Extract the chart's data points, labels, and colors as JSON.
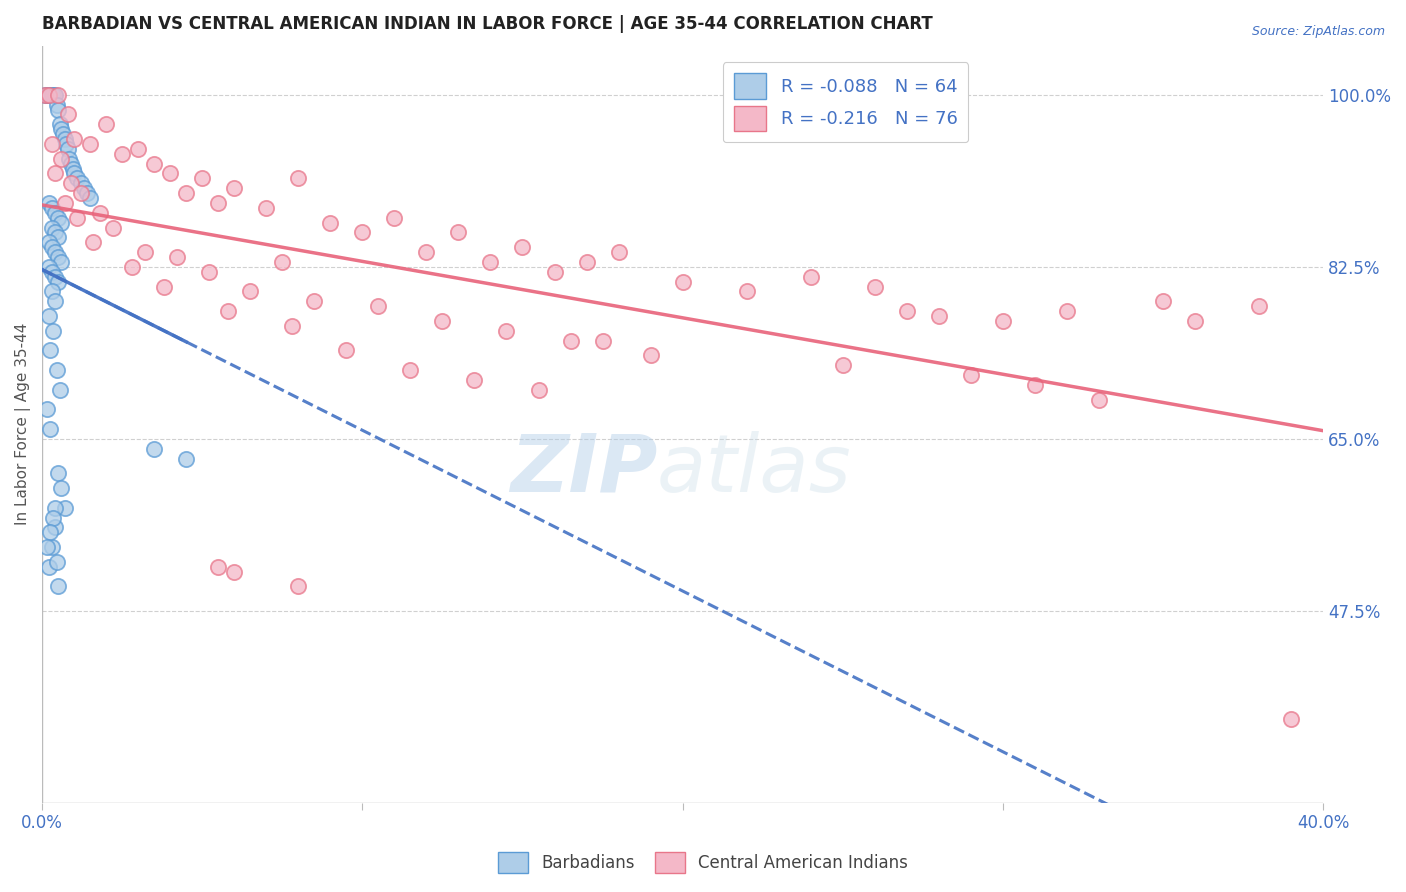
{
  "title": "BARBADIAN VS CENTRAL AMERICAN INDIAN IN LABOR FORCE | AGE 35-44 CORRELATION CHART",
  "source": "Source: ZipAtlas.com",
  "ylabel": "In Labor Force | Age 35-44",
  "x_min": 0.0,
  "x_max": 40.0,
  "y_min": 28.0,
  "y_max": 105.0,
  "y_ticks_right": [
    100.0,
    82.5,
    65.0,
    47.5
  ],
  "y_tick_labels_right": [
    "100.0%",
    "82.5%",
    "65.0%",
    "47.5%"
  ],
  "blue_R": -0.088,
  "blue_N": 64,
  "pink_R": -0.216,
  "pink_N": 76,
  "blue_color": "#aecde8",
  "pink_color": "#f4b8c8",
  "blue_edge_color": "#5b9bd5",
  "pink_edge_color": "#e8768a",
  "blue_line_color": "#4472c4",
  "pink_line_color": "#e8637a",
  "dashed_line_color": "#6baed6",
  "watermark_zip": "ZIP",
  "watermark_atlas": "atlas",
  "background_color": "#ffffff",
  "legend_label_blue": "Barbadians",
  "legend_label_pink": "Central American Indians",
  "blue_scatter_x": [
    0.1,
    0.15,
    0.2,
    0.25,
    0.3,
    0.35,
    0.4,
    0.45,
    0.5,
    0.55,
    0.6,
    0.65,
    0.7,
    0.75,
    0.8,
    0.85,
    0.9,
    0.95,
    1.0,
    1.1,
    1.2,
    1.3,
    1.4,
    1.5,
    0.2,
    0.3,
    0.4,
    0.5,
    0.6,
    0.3,
    0.4,
    0.5,
    0.2,
    0.3,
    0.4,
    0.5,
    0.6,
    0.2,
    0.3,
    0.4,
    0.5,
    0.3,
    0.4,
    0.2,
    0.35,
    0.25,
    0.45,
    0.55,
    0.15,
    0.25,
    3.5,
    4.5,
    0.5,
    0.6,
    0.7,
    0.4,
    0.3,
    0.2,
    0.5,
    0.4,
    0.35,
    0.25,
    0.15,
    0.45
  ],
  "blue_scatter_y": [
    100.0,
    100.0,
    100.0,
    100.0,
    100.0,
    100.0,
    100.0,
    99.0,
    98.5,
    97.0,
    96.5,
    96.0,
    95.5,
    95.0,
    94.5,
    93.5,
    93.0,
    92.5,
    92.0,
    91.5,
    91.0,
    90.5,
    90.0,
    89.5,
    89.0,
    88.5,
    88.0,
    87.5,
    87.0,
    86.5,
    86.0,
    85.5,
    85.0,
    84.5,
    84.0,
    83.5,
    83.0,
    82.5,
    82.0,
    81.5,
    81.0,
    80.0,
    79.0,
    77.5,
    76.0,
    74.0,
    72.0,
    70.0,
    68.0,
    66.0,
    64.0,
    63.0,
    61.5,
    60.0,
    58.0,
    56.0,
    54.0,
    52.0,
    50.0,
    58.0,
    57.0,
    55.5,
    54.0,
    52.5
  ],
  "pink_scatter_x": [
    0.1,
    0.2,
    0.5,
    0.8,
    1.0,
    1.5,
    2.0,
    2.5,
    3.0,
    3.5,
    4.0,
    4.5,
    5.0,
    5.5,
    6.0,
    7.0,
    8.0,
    9.0,
    10.0,
    11.0,
    12.0,
    13.0,
    14.0,
    15.0,
    16.0,
    17.0,
    18.0,
    20.0,
    22.0,
    24.0,
    26.0,
    28.0,
    30.0,
    32.0,
    35.0,
    38.0,
    0.3,
    0.6,
    0.9,
    1.2,
    1.8,
    2.2,
    3.2,
    4.2,
    5.2,
    6.5,
    7.5,
    8.5,
    10.5,
    12.5,
    14.5,
    16.5,
    0.4,
    0.7,
    1.1,
    1.6,
    2.8,
    3.8,
    5.8,
    7.8,
    9.5,
    11.5,
    13.5,
    15.5,
    17.5,
    19.0,
    25.0,
    29.0,
    31.0,
    33.0,
    6.0,
    8.0,
    27.0,
    36.0,
    39.0,
    5.5
  ],
  "pink_scatter_y": [
    100.0,
    100.0,
    100.0,
    98.0,
    95.5,
    95.0,
    97.0,
    94.0,
    94.5,
    93.0,
    92.0,
    90.0,
    91.5,
    89.0,
    90.5,
    88.5,
    91.5,
    87.0,
    86.0,
    87.5,
    84.0,
    86.0,
    83.0,
    84.5,
    82.0,
    83.0,
    84.0,
    81.0,
    80.0,
    81.5,
    80.5,
    77.5,
    77.0,
    78.0,
    79.0,
    78.5,
    95.0,
    93.5,
    91.0,
    90.0,
    88.0,
    86.5,
    84.0,
    83.5,
    82.0,
    80.0,
    83.0,
    79.0,
    78.5,
    77.0,
    76.0,
    75.0,
    92.0,
    89.0,
    87.5,
    85.0,
    82.5,
    80.5,
    78.0,
    76.5,
    74.0,
    72.0,
    71.0,
    70.0,
    75.0,
    73.5,
    72.5,
    71.5,
    70.5,
    69.0,
    51.5,
    50.0,
    78.0,
    77.0,
    36.5,
    52.0
  ]
}
